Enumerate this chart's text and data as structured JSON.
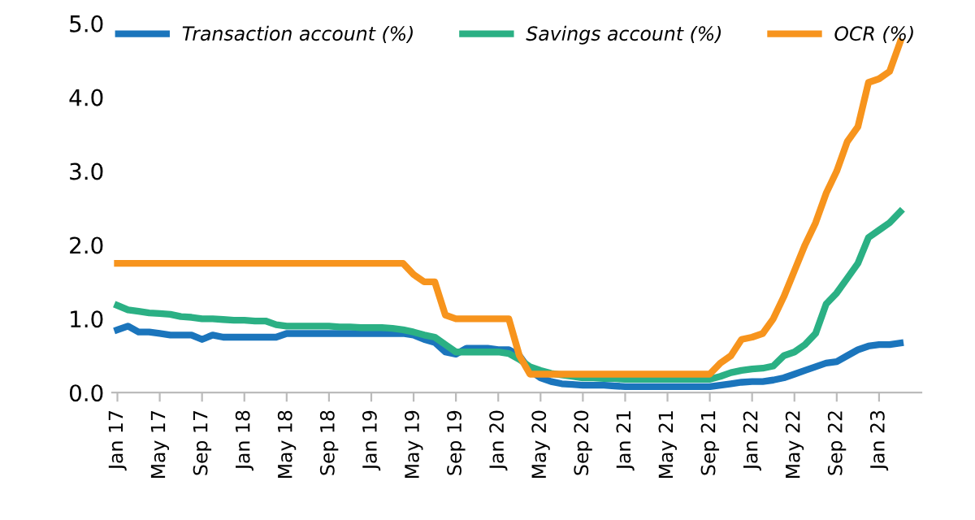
{
  "chart_data": {
    "type": "line",
    "categories": [
      "Jan 17",
      null,
      null,
      null,
      "May 17",
      null,
      null,
      null,
      "Sep 17",
      null,
      null,
      null,
      "Jan 18",
      null,
      null,
      null,
      "May 18",
      null,
      null,
      null,
      "Sep 18",
      null,
      null,
      null,
      "Jan 19",
      null,
      null,
      null,
      "May 19",
      null,
      null,
      null,
      "Sep 19",
      null,
      null,
      null,
      "Jan 20",
      null,
      null,
      null,
      "May 20",
      null,
      null,
      null,
      "Sep 20",
      null,
      null,
      null,
      "Jan 21",
      null,
      null,
      null,
      "May 21",
      null,
      null,
      null,
      "Sep 21",
      null,
      null,
      null,
      "Jan 22",
      null,
      null,
      null,
      "May 22",
      null,
      null,
      null,
      "Sep 22",
      null,
      null,
      null,
      "Jan 23",
      null,
      null
    ],
    "series": [
      {
        "name": "Transaction account (%)",
        "color": "#1b75bc",
        "values": [
          0.85,
          0.9,
          0.82,
          0.82,
          0.8,
          0.78,
          0.78,
          0.78,
          0.72,
          0.78,
          0.75,
          0.75,
          0.75,
          0.75,
          0.75,
          0.75,
          0.8,
          0.8,
          0.8,
          0.8,
          0.8,
          0.8,
          0.8,
          0.8,
          0.8,
          0.8,
          0.8,
          0.8,
          0.78,
          0.72,
          0.68,
          0.55,
          0.52,
          0.6,
          0.6,
          0.6,
          0.58,
          0.58,
          0.5,
          0.3,
          0.2,
          0.15,
          0.12,
          0.11,
          0.1,
          0.1,
          0.1,
          0.09,
          0.08,
          0.08,
          0.08,
          0.08,
          0.08,
          0.08,
          0.08,
          0.08,
          0.08,
          0.1,
          0.12,
          0.14,
          0.15,
          0.15,
          0.17,
          0.2,
          0.25,
          0.3,
          0.35,
          0.4,
          0.42,
          0.5,
          0.58,
          0.63,
          0.65,
          0.65,
          0.67
        ]
      },
      {
        "name": "Savings account (%)",
        "color": "#2bb084",
        "values": [
          1.18,
          1.12,
          1.1,
          1.08,
          1.07,
          1.06,
          1.03,
          1.02,
          1.0,
          1.0,
          0.99,
          0.98,
          0.98,
          0.97,
          0.97,
          0.92,
          0.9,
          0.9,
          0.9,
          0.9,
          0.9,
          0.89,
          0.89,
          0.88,
          0.88,
          0.88,
          0.87,
          0.85,
          0.82,
          0.78,
          0.75,
          0.65,
          0.55,
          0.55,
          0.55,
          0.55,
          0.55,
          0.53,
          0.45,
          0.35,
          0.3,
          0.26,
          0.24,
          0.22,
          0.2,
          0.2,
          0.19,
          0.19,
          0.18,
          0.18,
          0.18,
          0.18,
          0.18,
          0.18,
          0.18,
          0.18,
          0.18,
          0.22,
          0.27,
          0.3,
          0.32,
          0.33,
          0.36,
          0.5,
          0.55,
          0.65,
          0.8,
          1.2,
          1.35,
          1.55,
          1.75,
          2.1,
          2.2,
          2.3,
          2.45
        ]
      },
      {
        "name": "OCR (%)",
        "color": "#f7941d",
        "values": [
          1.75,
          1.75,
          1.75,
          1.75,
          1.75,
          1.75,
          1.75,
          1.75,
          1.75,
          1.75,
          1.75,
          1.75,
          1.75,
          1.75,
          1.75,
          1.75,
          1.75,
          1.75,
          1.75,
          1.75,
          1.75,
          1.75,
          1.75,
          1.75,
          1.75,
          1.75,
          1.75,
          1.75,
          1.6,
          1.5,
          1.5,
          1.05,
          1.0,
          1.0,
          1.0,
          1.0,
          1.0,
          1.0,
          0.5,
          0.25,
          0.25,
          0.25,
          0.25,
          0.25,
          0.25,
          0.25,
          0.25,
          0.25,
          0.25,
          0.25,
          0.25,
          0.25,
          0.25,
          0.25,
          0.25,
          0.25,
          0.25,
          0.4,
          0.5,
          0.72,
          0.75,
          0.8,
          1.0,
          1.3,
          1.65,
          2.0,
          2.3,
          2.7,
          3.0,
          3.4,
          3.6,
          4.2,
          4.25,
          4.35,
          4.75
        ]
      }
    ],
    "ylim": [
      0,
      5
    ],
    "yticks": [
      {
        "value": 0,
        "label": "0.0"
      },
      {
        "value": 1,
        "label": "1.0"
      },
      {
        "value": 2,
        "label": "2.0"
      },
      {
        "value": 3,
        "label": "3.0"
      },
      {
        "value": 4,
        "label": "4.0"
      },
      {
        "value": 5,
        "label": "5.0"
      }
    ],
    "grid": false,
    "legend": "top",
    "marker": "none",
    "line_style": "solid"
  }
}
